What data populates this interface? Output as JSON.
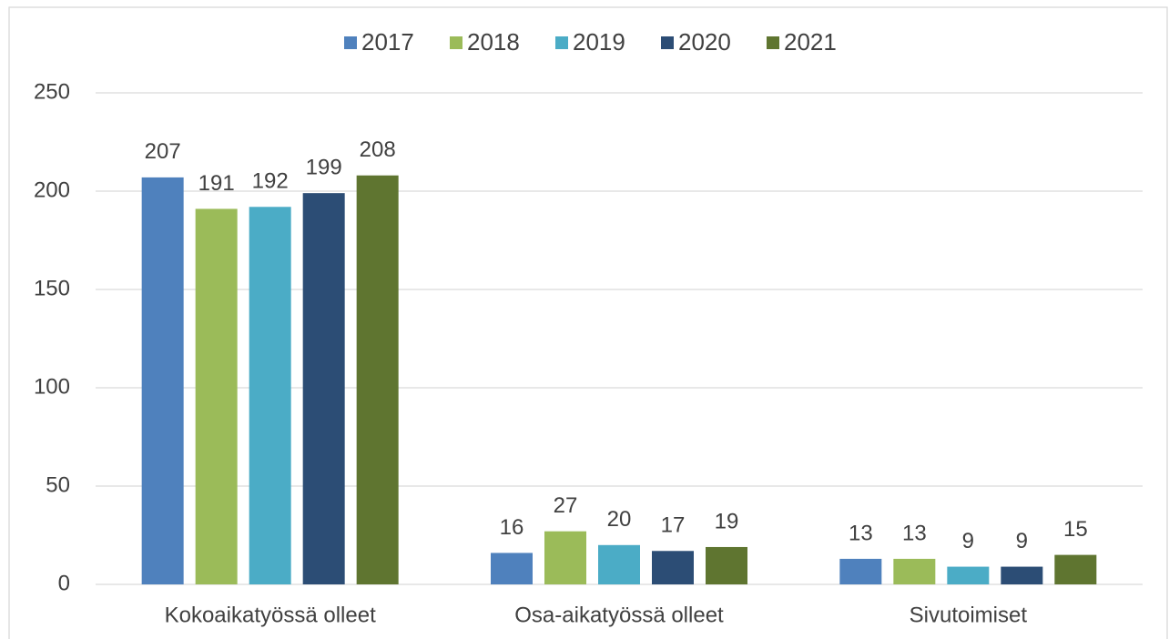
{
  "chart_data": {
    "type": "bar",
    "categories": [
      "Kokoaikatyössä olleet",
      "Osa-aikatyössä olleet",
      "Sivutoimiset"
    ],
    "series": [
      {
        "name": "2017",
        "color": "#4f81bd",
        "values": [
          207,
          16,
          13
        ]
      },
      {
        "name": "2018",
        "color": "#9bbb59",
        "values": [
          191,
          27,
          13
        ]
      },
      {
        "name": "2019",
        "color": "#4bacc6",
        "values": [
          192,
          20,
          9
        ]
      },
      {
        "name": "2020",
        "color": "#2c4d75",
        "values": [
          199,
          17,
          9
        ]
      },
      {
        "name": "2021",
        "color": "#5f7530",
        "values": [
          208,
          19,
          15
        ]
      }
    ],
    "ylim": [
      0,
      250
    ],
    "yticks": [
      0,
      50,
      100,
      150,
      200,
      250
    ],
    "grid": true,
    "legend": "top"
  }
}
